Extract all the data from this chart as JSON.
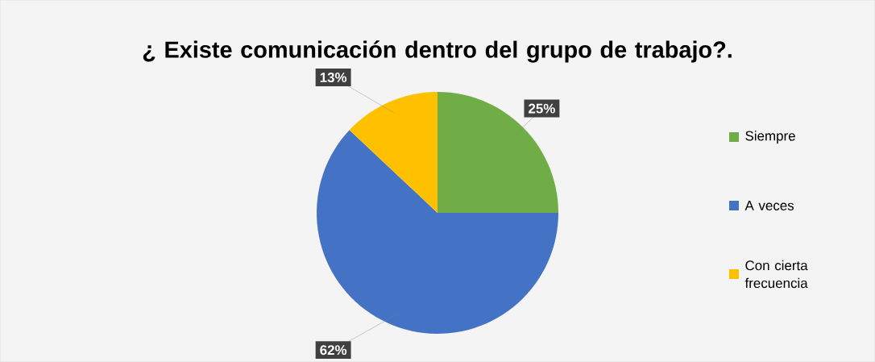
{
  "chart_data": {
    "type": "pie",
    "title": "¿ Existe comunicación dentro del grupo de trabajo?.",
    "categories": [
      "Siempre",
      "A veces",
      "Con cierta frecuencia"
    ],
    "values": [
      25,
      62,
      13
    ],
    "colors": [
      "#70ad47",
      "#4472c4",
      "#ffc000"
    ],
    "value_labels": [
      "25%",
      "62%",
      "13%"
    ],
    "legend": "right"
  }
}
